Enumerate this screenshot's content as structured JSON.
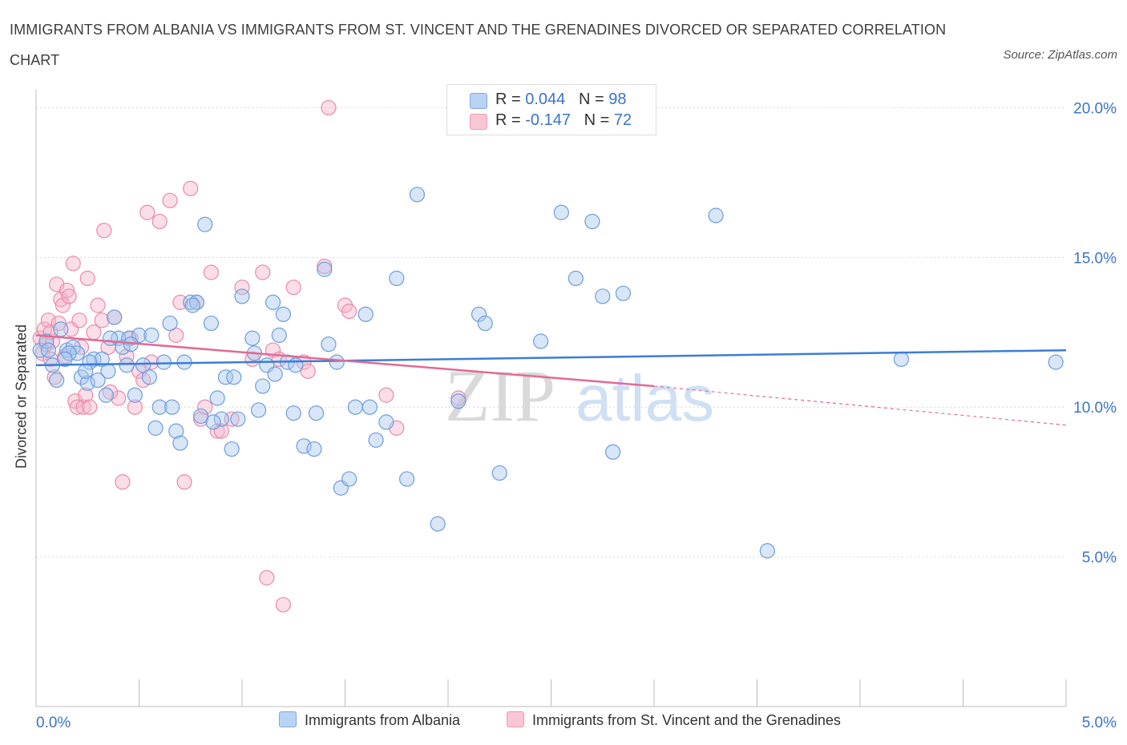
{
  "header": {
    "title": "IMMIGRANTS FROM ALBANIA VS IMMIGRANTS FROM ST. VINCENT AND THE GRENADINES DIVORCED OR SEPARATED CORRELATION CHART",
    "source": "Source: ZipAtlas.com"
  },
  "watermark": {
    "zip": "ZIP",
    "atlas": "atlas"
  },
  "legend": {
    "albania": {
      "r_label": "R =",
      "r_value": "0.044",
      "n_label": "N =",
      "n_value": "98"
    },
    "stvincent": {
      "r_label": "R =",
      "r_value": "-0.147",
      "n_label": "N =",
      "n_value": "72"
    }
  },
  "colors": {
    "albania_fill": "#a9c8f0",
    "albania_stroke": "#6d9ddc",
    "albania_line": "#3b7dd8",
    "stvincent_fill": "#f7b6cb",
    "stvincent_stroke": "#e98aa8",
    "stvincent_line": "#e36a93",
    "axis_text": "#3a73c8",
    "grid": "#d8d8d8"
  },
  "chart_data": {
    "type": "scatter",
    "title": "IMMIGRANTS FROM ALBANIA VS IMMIGRANTS FROM ST. VINCENT AND THE GRENADINES DIVORCED OR SEPARATED CORRELATION CHART",
    "ylabel": "Divorced or Separated",
    "xlabel": "",
    "xlim": [
      0,
      5
    ],
    "ylim": [
      0,
      20.6
    ],
    "x_ticks": [
      0,
      5
    ],
    "x_tick_labels": [
      "0.0%",
      "5.0%"
    ],
    "y_ticks": [
      5,
      10,
      15,
      20
    ],
    "y_tick_labels": [
      "5.0%",
      "10.0%",
      "15.0%",
      "20.0%"
    ],
    "grid": true,
    "legend_position": "top-center",
    "series": [
      {
        "name": "Immigrants from Albania",
        "trend": {
          "x": [
            0,
            5
          ],
          "y": [
            11.4,
            11.9
          ]
        },
        "points": [
          [
            0.02,
            11.9
          ],
          [
            0.05,
            12.2
          ],
          [
            0.08,
            11.4
          ],
          [
            0.12,
            12.6
          ],
          [
            0.1,
            10.9
          ],
          [
            0.15,
            11.9
          ],
          [
            0.18,
            12.0
          ],
          [
            0.2,
            11.8
          ],
          [
            0.22,
            11.0
          ],
          [
            0.25,
            10.8
          ],
          [
            0.28,
            11.6
          ],
          [
            0.3,
            10.9
          ],
          [
            0.32,
            11.6
          ],
          [
            0.35,
            11.2
          ],
          [
            0.38,
            13.0
          ],
          [
            0.4,
            12.3
          ],
          [
            0.42,
            12.0
          ],
          [
            0.45,
            12.3
          ],
          [
            0.48,
            10.4
          ],
          [
            0.5,
            12.4
          ],
          [
            0.52,
            11.4
          ],
          [
            0.55,
            11.0
          ],
          [
            0.58,
            9.3
          ],
          [
            0.6,
            10.0
          ],
          [
            0.62,
            11.5
          ],
          [
            0.65,
            12.8
          ],
          [
            0.68,
            9.2
          ],
          [
            0.7,
            8.8
          ],
          [
            0.72,
            11.5
          ],
          [
            0.75,
            13.5
          ],
          [
            0.78,
            13.5
          ],
          [
            0.8,
            9.7
          ],
          [
            0.82,
            16.1
          ],
          [
            0.85,
            12.8
          ],
          [
            0.88,
            10.3
          ],
          [
            0.9,
            9.6
          ],
          [
            0.92,
            11.0
          ],
          [
            0.95,
            8.6
          ],
          [
            0.98,
            9.6
          ],
          [
            1.0,
            13.7
          ],
          [
            1.05,
            12.3
          ],
          [
            1.08,
            9.9
          ],
          [
            1.1,
            10.7
          ],
          [
            1.12,
            11.4
          ],
          [
            1.15,
            13.5
          ],
          [
            1.18,
            12.4
          ],
          [
            1.2,
            13.1
          ],
          [
            1.22,
            11.5
          ],
          [
            1.25,
            9.8
          ],
          [
            1.3,
            8.7
          ],
          [
            1.35,
            8.6
          ],
          [
            1.4,
            14.6
          ],
          [
            1.42,
            12.1
          ],
          [
            1.48,
            7.3
          ],
          [
            1.52,
            7.6
          ],
          [
            1.55,
            10.0
          ],
          [
            1.6,
            13.1
          ],
          [
            1.62,
            10.0
          ],
          [
            1.65,
            8.9
          ],
          [
            1.7,
            9.5
          ],
          [
            1.75,
            14.3
          ],
          [
            1.8,
            7.6
          ],
          [
            1.85,
            17.1
          ],
          [
            1.95,
            6.1
          ],
          [
            2.05,
            10.2
          ],
          [
            2.15,
            13.1
          ],
          [
            2.18,
            12.8
          ],
          [
            2.25,
            7.8
          ],
          [
            2.45,
            12.2
          ],
          [
            2.55,
            16.5
          ],
          [
            2.62,
            14.3
          ],
          [
            2.7,
            16.2
          ],
          [
            2.75,
            13.7
          ],
          [
            2.8,
            8.5
          ],
          [
            2.85,
            13.8
          ],
          [
            3.3,
            16.4
          ],
          [
            3.55,
            5.2
          ],
          [
            4.2,
            11.6
          ],
          [
            4.95,
            11.5
          ],
          [
            0.06,
            11.9
          ],
          [
            0.16,
            11.8
          ],
          [
            0.26,
            11.5
          ],
          [
            0.36,
            12.3
          ],
          [
            0.46,
            12.1
          ],
          [
            0.56,
            12.4
          ],
          [
            0.66,
            10.0
          ],
          [
            0.76,
            13.4
          ],
          [
            0.86,
            9.5
          ],
          [
            0.96,
            11.0
          ],
          [
            1.06,
            11.8
          ],
          [
            1.16,
            11.1
          ],
          [
            1.26,
            11.4
          ],
          [
            1.36,
            9.8
          ],
          [
            1.46,
            11.5
          ],
          [
            0.14,
            11.6
          ],
          [
            0.24,
            11.2
          ],
          [
            0.34,
            10.4
          ],
          [
            0.44,
            11.4
          ]
        ]
      },
      {
        "name": "Immigrants from St. Vincent and the Grenadines",
        "trend": {
          "x": [
            0,
            3
          ],
          "y": [
            12.4,
            10.7
          ]
        },
        "trend_extension": {
          "x": [
            3,
            5
          ],
          "y": [
            10.7,
            9.4
          ]
        },
        "points": [
          [
            0.02,
            12.3
          ],
          [
            0.03,
            11.8
          ],
          [
            0.04,
            12.6
          ],
          [
            0.05,
            12.1
          ],
          [
            0.06,
            12.9
          ],
          [
            0.07,
            11.6
          ],
          [
            0.08,
            12.2
          ],
          [
            0.09,
            11.0
          ],
          [
            0.1,
            14.1
          ],
          [
            0.12,
            13.6
          ],
          [
            0.13,
            13.4
          ],
          [
            0.14,
            11.7
          ],
          [
            0.15,
            13.9
          ],
          [
            0.16,
            13.7
          ],
          [
            0.17,
            12.6
          ],
          [
            0.18,
            14.8
          ],
          [
            0.19,
            10.2
          ],
          [
            0.2,
            10.0
          ],
          [
            0.21,
            12.9
          ],
          [
            0.22,
            12.0
          ],
          [
            0.23,
            10.0
          ],
          [
            0.24,
            10.4
          ],
          [
            0.25,
            14.3
          ],
          [
            0.28,
            12.5
          ],
          [
            0.3,
            13.4
          ],
          [
            0.32,
            12.9
          ],
          [
            0.33,
            15.9
          ],
          [
            0.35,
            12.0
          ],
          [
            0.38,
            13.0
          ],
          [
            0.4,
            10.3
          ],
          [
            0.42,
            7.5
          ],
          [
            0.44,
            11.7
          ],
          [
            0.46,
            12.3
          ],
          [
            0.48,
            10.0
          ],
          [
            0.5,
            11.2
          ],
          [
            0.52,
            10.9
          ],
          [
            0.54,
            16.5
          ],
          [
            0.56,
            11.5
          ],
          [
            0.6,
            16.2
          ],
          [
            0.65,
            16.9
          ],
          [
            0.68,
            12.4
          ],
          [
            0.7,
            13.5
          ],
          [
            0.72,
            7.5
          ],
          [
            0.75,
            17.3
          ],
          [
            0.78,
            13.5
          ],
          [
            0.8,
            9.6
          ],
          [
            0.82,
            10.0
          ],
          [
            0.85,
            14.5
          ],
          [
            0.88,
            9.2
          ],
          [
            0.9,
            9.2
          ],
          [
            0.95,
            9.6
          ],
          [
            1.0,
            14.0
          ],
          [
            1.05,
            11.6
          ],
          [
            1.1,
            14.5
          ],
          [
            1.12,
            4.3
          ],
          [
            1.15,
            11.9
          ],
          [
            1.18,
            11.6
          ],
          [
            1.2,
            3.4
          ],
          [
            1.25,
            14.0
          ],
          [
            1.3,
            11.5
          ],
          [
            1.32,
            11.2
          ],
          [
            1.4,
            14.7
          ],
          [
            1.42,
            20.0
          ],
          [
            1.5,
            13.4
          ],
          [
            1.52,
            13.2
          ],
          [
            1.7,
            10.4
          ],
          [
            1.75,
            9.3
          ],
          [
            2.05,
            10.3
          ],
          [
            0.07,
            12.5
          ],
          [
            0.11,
            12.8
          ],
          [
            0.26,
            10.0
          ],
          [
            0.36,
            10.5
          ]
        ]
      }
    ]
  },
  "bottom_legend": {
    "albania": "Immigrants from Albania",
    "stvincent": "Immigrants from St. Vincent and the Grenadines"
  }
}
